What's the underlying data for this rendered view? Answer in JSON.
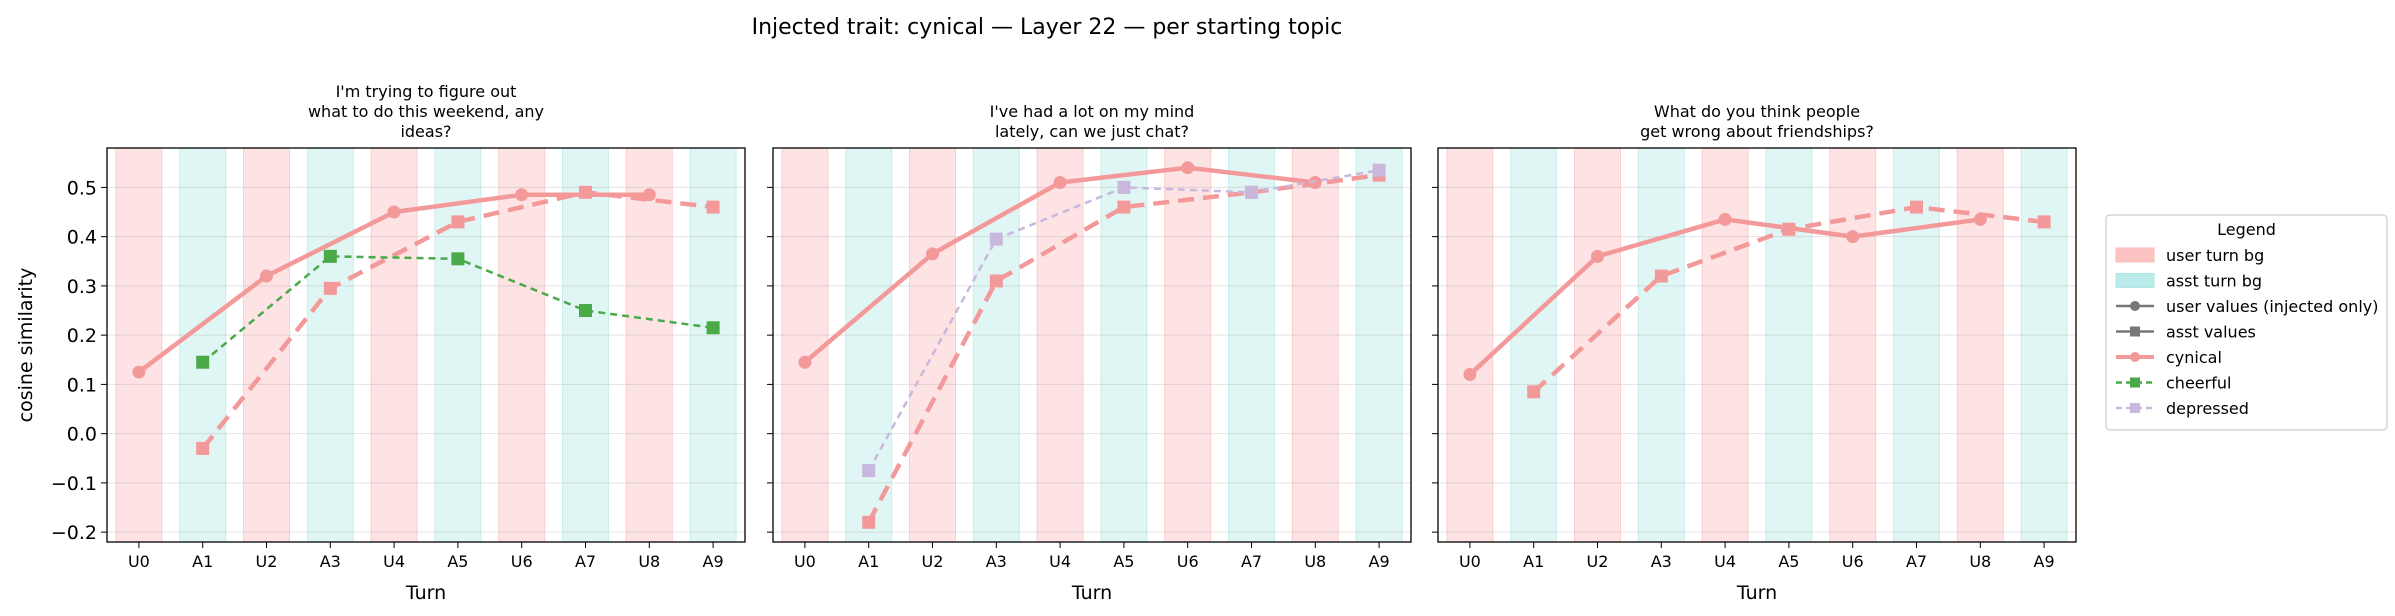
{
  "figure": {
    "suptitle": "Injected trait: cynical — Layer 22 — per starting topic"
  },
  "colors": {
    "cynical": "#f4999a",
    "cheerful": "#4aaa4a",
    "depressed": "#c9b8dd",
    "user_bg": "#fbb8b8",
    "asst_bg": "#aee8e6",
    "neutral": "#777777"
  },
  "legend": {
    "title": "Legend",
    "entries": [
      {
        "label": "user turn bg",
        "kind": "patch",
        "color": "#fbb8b8"
      },
      {
        "label": "asst turn bg",
        "kind": "patch",
        "color": "#aee8e6"
      },
      {
        "label": "user values (injected only)",
        "kind": "line-circle",
        "color": "#777777"
      },
      {
        "label": "asst values",
        "kind": "line-square",
        "color": "#777777"
      },
      {
        "label": "cynical",
        "kind": "line-circle",
        "color": "#f4999a"
      },
      {
        "label": "cheerful",
        "kind": "dash-square",
        "color": "#4aaa4a"
      },
      {
        "label": "depressed",
        "kind": "dash-square",
        "color": "#c9b8dd"
      }
    ]
  },
  "chart_data": [
    {
      "type": "line",
      "title": [
        "I'm trying to figure out",
        "what to do this weekend, any",
        "ideas?"
      ],
      "xlabel": "Turn",
      "ylabel": "cosine similarity",
      "categories": [
        "U0",
        "A1",
        "U2",
        "A3",
        "U4",
        "A5",
        "U6",
        "A7",
        "U8",
        "A9"
      ],
      "ylim": [
        -0.22,
        0.58
      ],
      "yticks": [
        "−0.2",
        "−0.1",
        "0.0",
        "0.1",
        "0.2",
        "0.3",
        "0.4",
        "0.5"
      ],
      "grid": true,
      "series": [
        {
          "name": "cynical",
          "role": "user",
          "x": [
            "U0",
            "U2",
            "U4",
            "U6",
            "U8"
          ],
          "values": [
            0.125,
            0.32,
            0.45,
            0.485,
            0.485
          ]
        },
        {
          "name": "cynical",
          "role": "asst",
          "x": [
            "A1",
            "A3",
            "A5",
            "A7",
            "A9"
          ],
          "values": [
            -0.03,
            0.295,
            0.43,
            0.49,
            0.46
          ]
        },
        {
          "name": "cheerful",
          "role": "asst",
          "x": [
            "A1",
            "A3",
            "A5",
            "A7",
            "A9"
          ],
          "values": [
            0.145,
            0.36,
            0.355,
            0.25,
            0.215
          ]
        }
      ]
    },
    {
      "type": "line",
      "title": [
        "I've had a lot on my mind",
        "lately, can we just chat?"
      ],
      "xlabel": "Turn",
      "ylabel": "",
      "categories": [
        "U0",
        "A1",
        "U2",
        "A3",
        "U4",
        "A5",
        "U6",
        "A7",
        "U8",
        "A9"
      ],
      "ylim": [
        -0.22,
        0.58
      ],
      "yticks": [
        "−0.2",
        "−0.1",
        "0.0",
        "0.1",
        "0.2",
        "0.3",
        "0.4",
        "0.5"
      ],
      "grid": true,
      "series": [
        {
          "name": "cynical",
          "role": "user",
          "x": [
            "U0",
            "U2",
            "U4",
            "U6",
            "U8"
          ],
          "values": [
            0.145,
            0.365,
            0.51,
            0.54,
            0.51
          ]
        },
        {
          "name": "cynical",
          "role": "asst",
          "x": [
            "A1",
            "A3",
            "A5",
            "A7",
            "A9"
          ],
          "values": [
            -0.18,
            0.31,
            0.46,
            0.49,
            0.525
          ]
        },
        {
          "name": "depressed",
          "role": "asst",
          "x": [
            "A1",
            "A3",
            "A5",
            "A7",
            "A9"
          ],
          "values": [
            -0.075,
            0.395,
            0.5,
            0.49,
            0.535
          ]
        }
      ]
    },
    {
      "type": "line",
      "title": [
        "What do you think people",
        "get wrong about friendships?"
      ],
      "xlabel": "Turn",
      "ylabel": "",
      "categories": [
        "U0",
        "A1",
        "U2",
        "A3",
        "U4",
        "A5",
        "U6",
        "A7",
        "U8",
        "A9"
      ],
      "ylim": [
        -0.22,
        0.58
      ],
      "yticks": [
        "−0.2",
        "−0.1",
        "0.0",
        "0.1",
        "0.2",
        "0.3",
        "0.4",
        "0.5"
      ],
      "grid": true,
      "series": [
        {
          "name": "cynical",
          "role": "user",
          "x": [
            "U0",
            "U2",
            "U4",
            "U6",
            "U8"
          ],
          "values": [
            0.12,
            0.36,
            0.435,
            0.4,
            0.435
          ]
        },
        {
          "name": "cynical",
          "role": "asst",
          "x": [
            "A1",
            "A3",
            "A5",
            "A7",
            "A9"
          ],
          "values": [
            0.085,
            0.32,
            0.415,
            0.46,
            0.43
          ]
        }
      ]
    }
  ]
}
